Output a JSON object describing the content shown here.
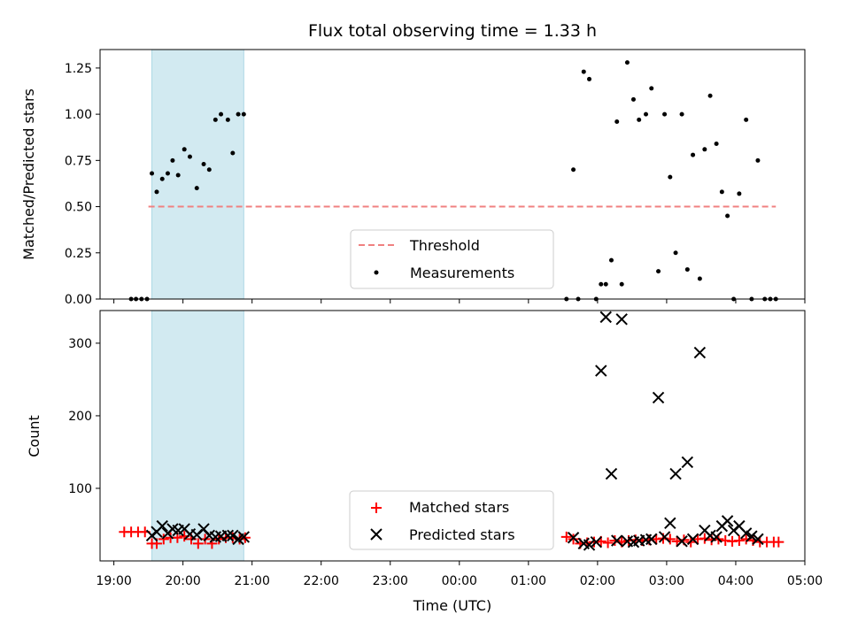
{
  "chart_data": {
    "title": "Flux total observing time = 1.33 h",
    "xlabel": "Time (UTC)",
    "x_ticks": [
      "19:00",
      "20:00",
      "21:00",
      "22:00",
      "23:00",
      "00:00",
      "01:00",
      "02:00",
      "03:00",
      "04:00",
      "05:00"
    ],
    "xlim_hours": [
      18.8,
      29.0
    ],
    "highlight_span": {
      "start_hour": 19.55,
      "end_hour": 20.88,
      "color": "#add8e6"
    },
    "subplots": [
      {
        "name": "ratio",
        "type": "scatter",
        "ylabel": "Matched/Predicted stars",
        "ylim": [
          0,
          1.35
        ],
        "y_ticks": [
          0.0,
          0.25,
          0.5,
          0.75,
          1.0,
          1.25
        ],
        "y_tick_labels": [
          "0.00",
          "0.25",
          "0.50",
          "0.75",
          "1.00",
          "1.25"
        ],
        "legend": {
          "position": "lower-center",
          "threshold_label": "Threshold",
          "measurements_label": "Measurements"
        },
        "threshold": {
          "value": 0.5,
          "x_start": 19.5,
          "x_end": 28.58,
          "color": "#f08080"
        },
        "measurements": {
          "color": "#000000",
          "x": [
            19.25,
            19.32,
            19.4,
            19.48,
            19.55,
            19.62,
            19.7,
            19.78,
            19.85,
            19.93,
            20.02,
            20.1,
            20.2,
            20.3,
            20.38,
            20.47,
            20.55,
            20.65,
            20.72,
            20.8,
            20.88,
            25.55,
            25.65,
            25.72,
            25.8,
            25.88,
            25.98,
            26.05,
            26.12,
            26.2,
            26.28,
            26.35,
            26.43,
            26.52,
            26.6,
            26.7,
            26.78,
            26.88,
            26.97,
            27.05,
            27.13,
            27.22,
            27.3,
            27.38,
            27.48,
            27.55,
            27.63,
            27.72,
            27.8,
            27.88,
            27.97,
            28.05,
            28.15,
            28.23,
            28.32,
            28.42,
            28.5,
            28.58
          ],
          "y": [
            0.0,
            0.0,
            0.0,
            0.0,
            0.68,
            0.58,
            0.65,
            0.68,
            0.75,
            0.67,
            0.81,
            0.77,
            0.6,
            0.73,
            0.7,
            0.97,
            1.0,
            0.97,
            0.79,
            1.0,
            1.0,
            0.0,
            0.7,
            0.0,
            1.23,
            1.19,
            0.0,
            0.08,
            0.08,
            0.21,
            0.96,
            0.08,
            1.28,
            1.08,
            0.97,
            1.0,
            1.14,
            0.15,
            1.0,
            0.66,
            0.25,
            1.0,
            0.16,
            0.78,
            0.11,
            0.81,
            1.1,
            0.84,
            0.58,
            0.45,
            0.0,
            0.57,
            0.97,
            0.0,
            0.75,
            0.0,
            0.0,
            0.0
          ]
        }
      },
      {
        "name": "counts",
        "type": "scatter",
        "ylabel": "Count",
        "ylim": [
          0,
          345
        ],
        "y_ticks": [
          100,
          200,
          300
        ],
        "y_tick_labels": [
          "100",
          "200",
          "300"
        ],
        "legend": {
          "position": "lower-center"
        },
        "series": [
          {
            "name": "Matched stars",
            "marker": "plus",
            "color": "#ff0000",
            "x": [
              19.15,
              19.25,
              19.35,
              19.45,
              19.55,
              19.62,
              19.72,
              19.82,
              19.92,
              20.02,
              20.12,
              20.22,
              20.32,
              20.42,
              20.52,
              20.62,
              20.72,
              20.82,
              20.9,
              25.55,
              25.65,
              25.75,
              25.85,
              25.95,
              26.05,
              26.15,
              26.25,
              26.35,
              26.45,
              26.55,
              26.65,
              26.75,
              26.85,
              26.95,
              27.05,
              27.15,
              27.25,
              27.35,
              27.45,
              27.55,
              27.65,
              27.75,
              27.85,
              27.95,
              28.05,
              28.15,
              28.25,
              28.35,
              28.45,
              28.55,
              28.62
            ],
            "y": [
              40,
              40,
              40,
              40,
              24,
              24,
              30,
              32,
              32,
              34,
              30,
              24,
              30,
              24,
              30,
              32,
              32,
              30,
              32,
              33,
              30,
              24,
              25,
              26,
              27,
              25,
              28,
              26,
              28,
              29,
              28,
              29,
              30,
              31,
              30,
              27,
              29,
              26,
              30,
              31,
              29,
              30,
              28,
              27,
              28,
              30,
              28,
              26,
              26,
              26,
              26
            ]
          },
          {
            "name": "Predicted stars",
            "marker": "x",
            "color": "#000000",
            "x": [
              19.55,
              19.62,
              19.7,
              19.78,
              19.85,
              19.93,
              20.02,
              20.1,
              20.2,
              20.3,
              20.38,
              20.47,
              20.55,
              20.65,
              20.72,
              20.8,
              20.88,
              25.65,
              25.8,
              25.88,
              25.98,
              26.05,
              26.12,
              26.2,
              26.28,
              26.35,
              26.43,
              26.52,
              26.6,
              26.7,
              26.78,
              26.88,
              26.97,
              27.05,
              27.13,
              27.22,
              27.3,
              27.38,
              27.48,
              27.55,
              27.63,
              27.72,
              27.8,
              27.88,
              27.97,
              28.05,
              28.15,
              28.23,
              28.32
            ],
            "y": [
              35,
              40,
              48,
              38,
              44,
              42,
              44,
              37,
              36,
              44,
              35,
              33,
              34,
              35,
              35,
              30,
              33,
              32,
              24,
              22,
              26,
              262,
              336,
              120,
              28,
              333,
              27,
              26,
              28,
              29,
              30,
              225,
              33,
              52,
              120,
              27,
              136,
              30,
              287,
              42,
              35,
              33,
              48,
              55,
              42,
              48,
              38,
              34,
              30
            ]
          }
        ]
      }
    ]
  }
}
